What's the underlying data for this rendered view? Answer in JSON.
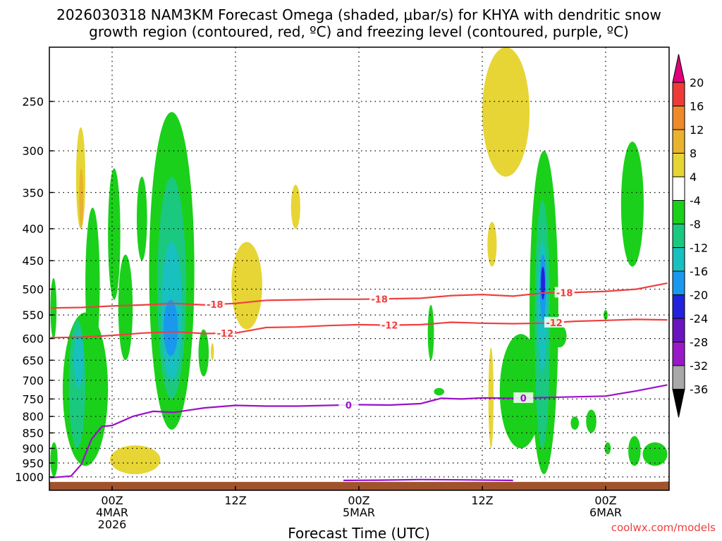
{
  "chart_data": {
    "type": "time-height contour",
    "title_line1": "2026030318 NAM3KM Forecast Omega (shaded, μbar/s) for KHYA with dendritic snow",
    "title_line2": "growth region (contoured, red, ºC) and freezing level (contoured, purple, ºC)",
    "xlabel": "Forecast Time (UTC)",
    "x_ticks": [
      {
        "hour": 6,
        "lines": [
          "00Z",
          "4MAR",
          "2026"
        ]
      },
      {
        "hour": 18,
        "lines": [
          "12Z"
        ]
      },
      {
        "hour": 30,
        "lines": [
          "00Z",
          "5MAR"
        ]
      },
      {
        "hour": 42,
        "lines": [
          "12Z"
        ]
      },
      {
        "hour": 54,
        "lines": [
          "00Z",
          "6MAR"
        ]
      }
    ],
    "xlim_hours": [
      0,
      60
    ],
    "y_ticks": [
      250,
      300,
      350,
      400,
      450,
      500,
      550,
      600,
      650,
      700,
      750,
      800,
      850,
      900,
      950,
      1000
    ],
    "ylim_hpa": [
      200,
      1030
    ],
    "colorbar": {
      "labels": [
        "20",
        "16",
        "12",
        "8",
        "4",
        "-4",
        "-8",
        "-12",
        "-16",
        "-20",
        "-24",
        "-28",
        "-32",
        "-36"
      ],
      "colors": [
        "#e0007a",
        "#ef3a3a",
        "#ef8a2a",
        "#e8b32e",
        "#e6d534",
        "#ffffff",
        "#1ad01a",
        "#1ac880",
        "#18c0c0",
        "#1a98ee",
        "#2222dd",
        "#6a14c0",
        "#9a18c8",
        "#a8a8a8",
        "#000000"
      ]
    },
    "dgz_contours": [
      {
        "label": "-18",
        "color": "#ee4040",
        "points": [
          [
            0,
            536
          ],
          [
            3,
            535
          ],
          [
            6,
            532
          ],
          [
            9,
            530
          ],
          [
            12,
            527
          ],
          [
            15,
            530
          ],
          [
            18,
            527
          ],
          [
            21,
            521
          ],
          [
            24,
            520
          ],
          [
            27,
            519
          ],
          [
            30,
            519
          ],
          [
            33,
            518
          ],
          [
            36,
            517
          ],
          [
            39,
            512
          ],
          [
            42,
            510
          ],
          [
            45,
            513
          ],
          [
            48,
            507
          ],
          [
            51,
            506
          ],
          [
            54,
            504
          ],
          [
            57,
            500
          ],
          [
            60,
            489
          ]
        ],
        "label_hours": [
          16,
          32,
          50
        ]
      },
      {
        "label": "-12",
        "color": "#ee4040",
        "points": [
          [
            0,
            598
          ],
          [
            3,
            597
          ],
          [
            6,
            593
          ],
          [
            9,
            588
          ],
          [
            12,
            585
          ],
          [
            15,
            589
          ],
          [
            18,
            588
          ],
          [
            21,
            576
          ],
          [
            24,
            575
          ],
          [
            27,
            572
          ],
          [
            30,
            570
          ],
          [
            33,
            571
          ],
          [
            36,
            570
          ],
          [
            39,
            565
          ],
          [
            42,
            567
          ],
          [
            45,
            568
          ],
          [
            48,
            567
          ],
          [
            51,
            563
          ],
          [
            54,
            561
          ],
          [
            57,
            559
          ],
          [
            60,
            560
          ]
        ],
        "label_hours": [
          17,
          33,
          49
        ]
      }
    ],
    "freezing_level": {
      "label": "0",
      "color": "#9a12c8",
      "points": [
        [
          0,
          1003
        ],
        [
          2,
          997
        ],
        [
          3,
          955
        ],
        [
          4,
          870
        ],
        [
          5,
          830
        ],
        [
          6,
          827
        ],
        [
          8,
          800
        ],
        [
          10,
          785
        ],
        [
          12,
          788
        ],
        [
          15,
          775
        ],
        [
          18,
          768
        ],
        [
          21,
          770
        ],
        [
          24,
          770
        ],
        [
          27,
          768
        ],
        [
          30,
          766
        ],
        [
          33,
          767
        ],
        [
          36,
          763
        ],
        [
          38,
          748
        ],
        [
          40,
          750
        ],
        [
          42,
          747
        ],
        [
          45,
          748
        ],
        [
          48,
          746
        ],
        [
          51,
          744
        ],
        [
          54,
          742
        ],
        [
          57,
          728
        ],
        [
          60,
          712
        ]
      ],
      "label_hours": [
        29,
        46
      ]
    },
    "freezing_level_surface": {
      "color": "#9a12c8",
      "points": [
        [
          28.5,
          1013
        ],
        [
          32,
          1012
        ],
        [
          36,
          1010
        ],
        [
          40,
          1011
        ],
        [
          45,
          1013
        ]
      ]
    },
    "omega_regions": [
      {
        "level": 4,
        "x": [
          2.5,
          3.4
        ],
        "p": [
          275,
          400
        ]
      },
      {
        "level": 8,
        "x": [
          2.8,
          3.2
        ],
        "p": [
          320,
          400
        ]
      },
      {
        "level": 4,
        "x": [
          17.6,
          20.6
        ],
        "p": [
          420,
          580
        ]
      },
      {
        "level": 4,
        "x": [
          23.4,
          24.3
        ],
        "p": [
          340,
          400
        ]
      },
      {
        "level": 4,
        "x": [
          5.8,
          10.7
        ],
        "p": [
          890,
          990
        ]
      },
      {
        "level": 4,
        "x": [
          42.0,
          46.6
        ],
        "p": [
          180,
          330
        ]
      },
      {
        "level": 4,
        "x": [
          42.5,
          43.4
        ],
        "p": [
          390,
          460
        ]
      },
      {
        "level": 4,
        "x": [
          42.6,
          43.1
        ],
        "p": [
          620,
          900
        ]
      },
      {
        "level": 4,
        "x": [
          15.6,
          15.9
        ],
        "p": [
          610,
          650
        ]
      },
      {
        "level": -4,
        "x": [
          0,
          0.6
        ],
        "p": [
          480,
          600
        ]
      },
      {
        "level": -4,
        "x": [
          0,
          0.7
        ],
        "p": [
          880,
          1000
        ]
      },
      {
        "level": -4,
        "x": [
          1.2,
          5.6
        ],
        "p": [
          545,
          960
        ]
      },
      {
        "level": -4,
        "x": [
          3.4,
          4.8
        ],
        "p": [
          370,
          650
        ]
      },
      {
        "level": -4,
        "x": [
          5.6,
          6.8
        ],
        "p": [
          320,
          520
        ]
      },
      {
        "level": -4,
        "x": [
          6.6,
          8.0
        ],
        "p": [
          440,
          650
        ]
      },
      {
        "level": -4,
        "x": [
          8.4,
          9.4
        ],
        "p": [
          330,
          450
        ]
      },
      {
        "level": -4,
        "x": [
          9.6,
          14.0
        ],
        "p": [
          260,
          840
        ]
      },
      {
        "level": -4,
        "x": [
          14.4,
          15.4
        ],
        "p": [
          580,
          690
        ]
      },
      {
        "level": -4,
        "x": [
          36.7,
          37.3
        ],
        "p": [
          530,
          650
        ]
      },
      {
        "level": -4,
        "x": [
          37.3,
          38.3
        ],
        "p": [
          720,
          740
        ]
      },
      {
        "level": -4,
        "x": [
          43.7,
          47.8
        ],
        "p": [
          590,
          900
        ]
      },
      {
        "level": -4,
        "x": [
          46.6,
          49.4
        ],
        "p": [
          300,
          990
        ]
      },
      {
        "level": -4,
        "x": [
          48.8,
          50.2
        ],
        "p": [
          570,
          620
        ]
      },
      {
        "level": -4,
        "x": [
          50.6,
          51.4
        ],
        "p": [
          800,
          840
        ]
      },
      {
        "level": -4,
        "x": [
          52.1,
          53.1
        ],
        "p": [
          780,
          850
        ]
      },
      {
        "level": -4,
        "x": [
          53.8,
          54.2
        ],
        "p": [
          540,
          560
        ]
      },
      {
        "level": -4,
        "x": [
          53.9,
          54.5
        ],
        "p": [
          880,
          920
        ]
      },
      {
        "level": -4,
        "x": [
          55.5,
          57.7
        ],
        "p": [
          290,
          460
        ]
      },
      {
        "level": -4,
        "x": [
          56.2,
          57.4
        ],
        "p": [
          860,
          960
        ]
      },
      {
        "level": -4,
        "x": [
          57.6,
          60.0
        ],
        "p": [
          880,
          960
        ]
      },
      {
        "level": -8,
        "x": [
          1.8,
          3.4
        ],
        "p": [
          560,
          900
        ]
      },
      {
        "level": -8,
        "x": [
          10.4,
          13.2
        ],
        "p": [
          330,
          750
        ]
      },
      {
        "level": -8,
        "x": [
          47.1,
          48.6
        ],
        "p": [
          360,
          900
        ]
      },
      {
        "level": -12,
        "x": [
          2.3,
          3.2
        ],
        "p": [
          580,
          720
        ]
      },
      {
        "level": -12,
        "x": [
          10.8,
          12.8
        ],
        "p": [
          420,
          700
        ]
      },
      {
        "level": -12,
        "x": [
          47.4,
          48.3
        ],
        "p": [
          420,
          680
        ]
      },
      {
        "level": -16,
        "x": [
          11.0,
          12.4
        ],
        "p": [
          520,
          640
        ]
      },
      {
        "level": -16,
        "x": [
          47.6,
          48.2
        ],
        "p": [
          440,
          560
        ]
      },
      {
        "level": -20,
        "x": [
          47.7,
          48.1
        ],
        "p": [
          460,
          520
        ]
      }
    ],
    "terrain": {
      "color": "#a0522d",
      "top_hpa": 1017
    },
    "credit": "coolwx.com/models"
  }
}
